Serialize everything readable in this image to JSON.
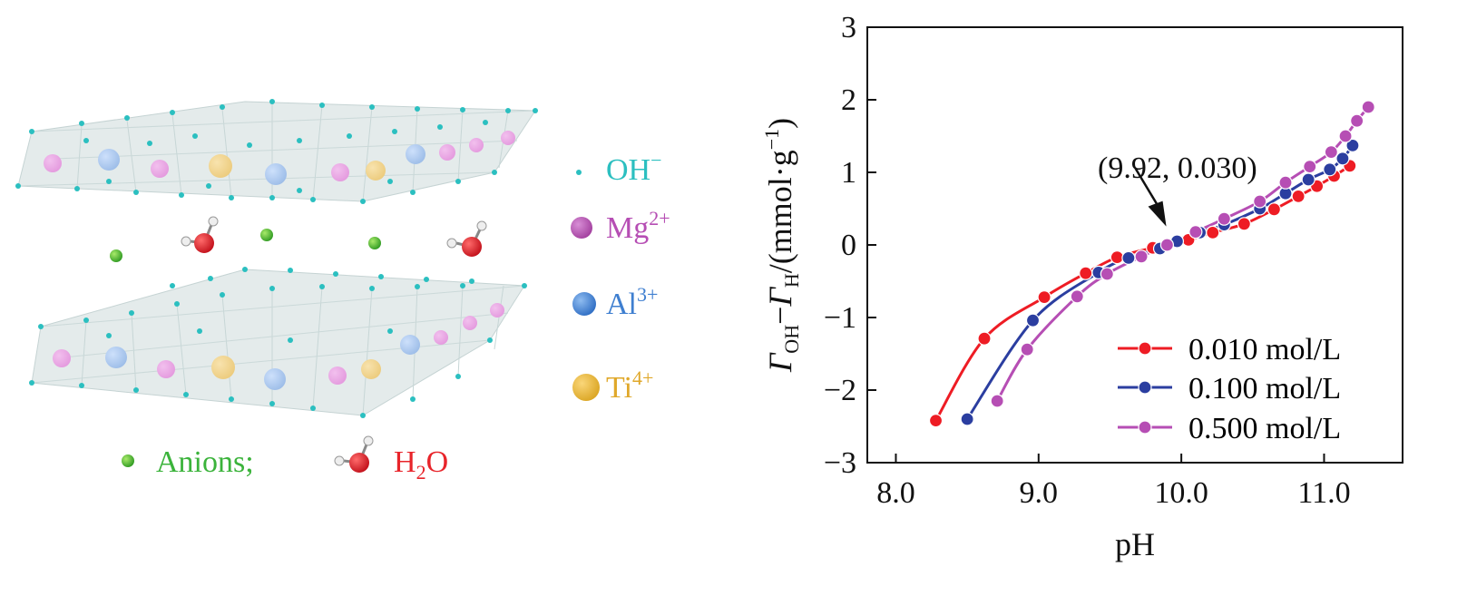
{
  "structure_legend": {
    "oh": {
      "label": "OH",
      "sup": "−",
      "color": "#2bbfc0"
    },
    "mg": {
      "label": "Mg",
      "sup": "2+",
      "color": "#b64eb4"
    },
    "al": {
      "label": "Al",
      "sup": "3+",
      "color": "#3f7fd0"
    },
    "ti": {
      "label": "Ti",
      "sup": "4+",
      "color": "#e9b72e"
    },
    "anions": {
      "label": "Anions;",
      "color": "#3bb33b"
    },
    "water": {
      "label_main": "H",
      "label_sub": "2",
      "label_tail": "O",
      "color": "#e8242a"
    }
  },
  "chart_data": {
    "type": "line",
    "title": "",
    "xlabel": "pH",
    "ylabel": {
      "gamma": "Γ",
      "sub_oh": "OH",
      "dash": "−",
      "sub_h": "H",
      "unit": "/(mmol·g",
      "unit_sup": "−1",
      "close": ")"
    },
    "xlim": [
      7.8,
      11.55
    ],
    "ylim": [
      -3,
      3
    ],
    "xticks": [
      8.0,
      9.0,
      10.0,
      11.0
    ],
    "xtick_labels": [
      "8.0",
      "9.0",
      "10.0",
      "11.0"
    ],
    "yticks": [
      -3,
      -2,
      -1,
      0,
      1,
      2,
      3
    ],
    "ytick_labels": [
      "−3",
      "−2",
      "−1",
      "0",
      "1",
      "2",
      "3"
    ],
    "legend_position": "bottom-right",
    "annotation": {
      "text": "(9.92, 0.030)",
      "x": 9.92,
      "y": 0.03
    },
    "series": [
      {
        "name": "0.010 mol/L",
        "color": "#ee1c24",
        "x": [
          8.28,
          8.62,
          9.04,
          9.33,
          9.55,
          9.8,
          10.05,
          10.22,
          10.44,
          10.65,
          10.82,
          10.95,
          11.07,
          11.18
        ],
        "y": [
          -2.42,
          -1.29,
          -0.72,
          -0.39,
          -0.17,
          -0.04,
          0.07,
          0.17,
          0.29,
          0.49,
          0.67,
          0.81,
          0.95,
          1.09
        ]
      },
      {
        "name": "0.100 mol/L",
        "color": "#2b3ea0",
        "x": [
          8.5,
          8.96,
          9.42,
          9.63,
          9.85,
          9.97,
          10.13,
          10.3,
          10.55,
          10.73,
          10.89,
          11.04,
          11.13,
          11.2
        ],
        "y": [
          -2.4,
          -1.04,
          -0.38,
          -0.18,
          -0.05,
          0.05,
          0.17,
          0.28,
          0.5,
          0.71,
          0.9,
          1.04,
          1.19,
          1.37
        ]
      },
      {
        "name": "0.500 mol/L",
        "color": "#b64eb4",
        "x": [
          8.71,
          8.92,
          9.27,
          9.48,
          9.72,
          9.9,
          10.1,
          10.3,
          10.55,
          10.73,
          10.9,
          11.05,
          11.15,
          11.23,
          11.31
        ],
        "y": [
          -2.15,
          -1.44,
          -0.71,
          -0.4,
          -0.16,
          0.0,
          0.18,
          0.36,
          0.6,
          0.86,
          1.08,
          1.28,
          1.5,
          1.71,
          1.9
        ]
      }
    ]
  }
}
